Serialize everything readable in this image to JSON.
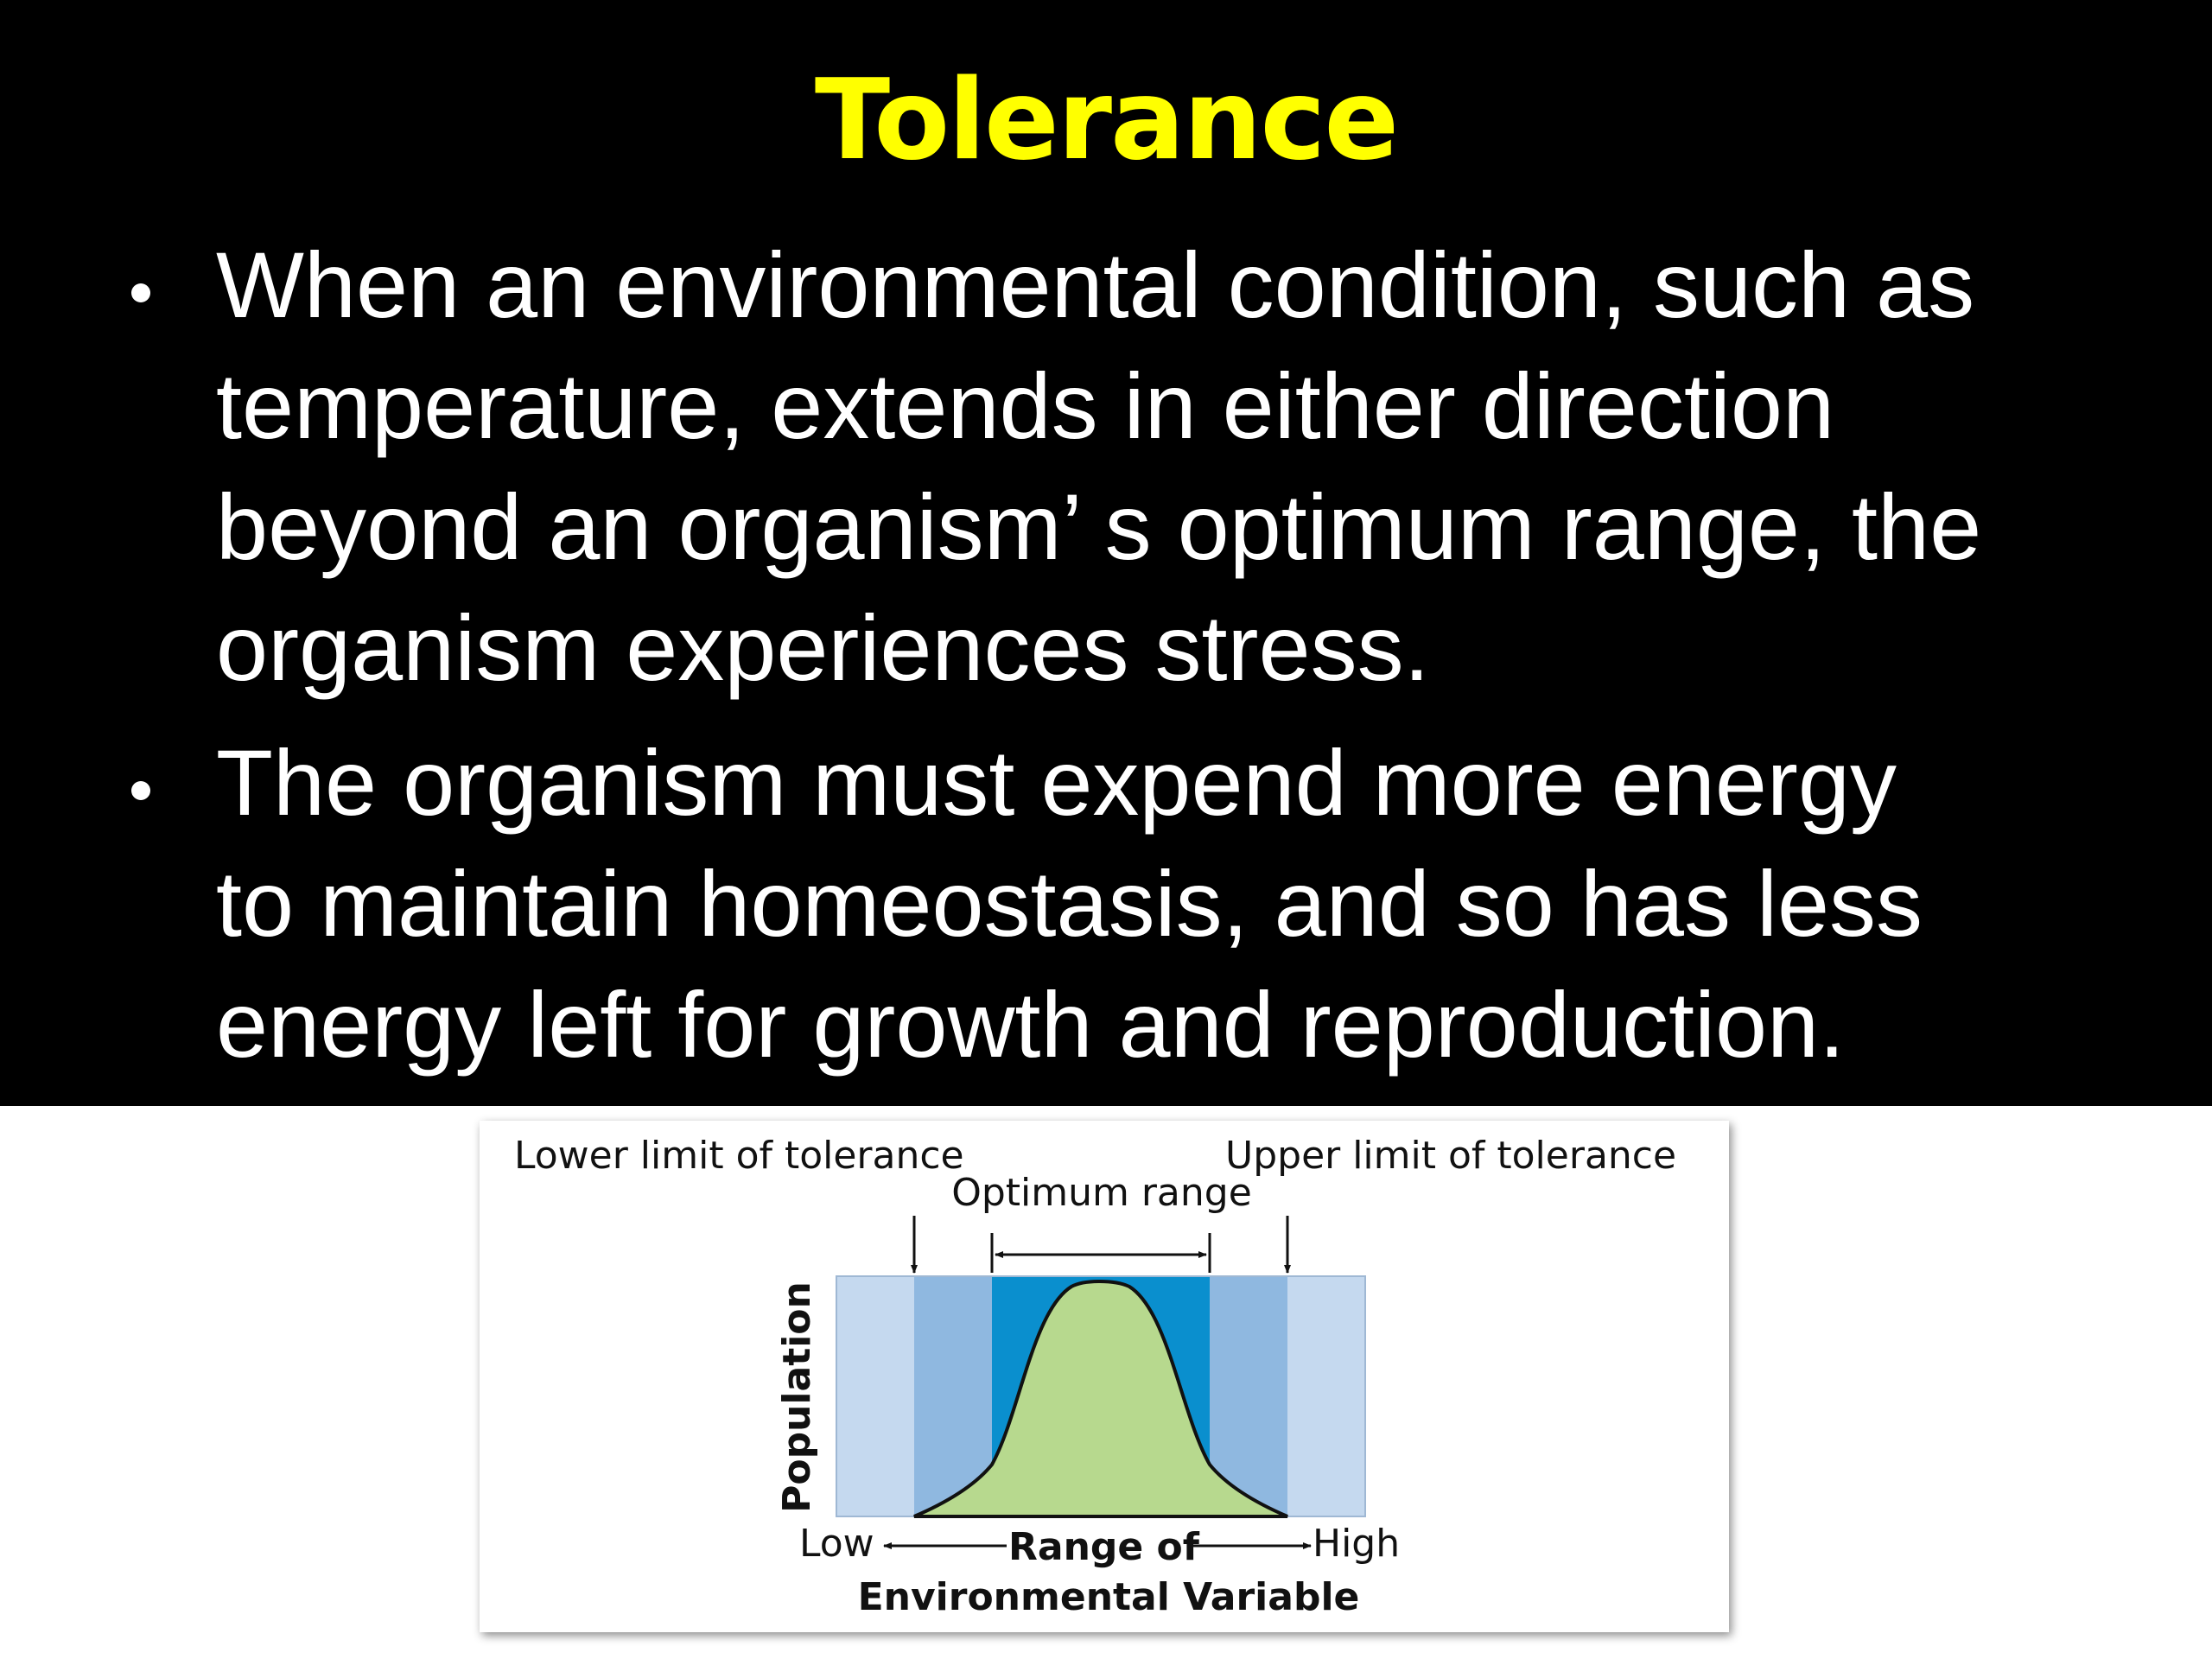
{
  "slide": {
    "title": "Tolerance",
    "title_color": "#ffff00",
    "bullets": [
      {
        "lines": [
          "When an environmental condition, such as",
          "temperature, extends in either direction",
          "beyond an organism’ s optimum range, the",
          "organism experiences stress."
        ]
      },
      {
        "lines": [
          "The organism must expend more energy",
          "to maintain homeostasis, and so has less",
          "energy left for growth and reproduction."
        ]
      }
    ]
  },
  "diagram": {
    "labels": {
      "lower_limit": "Lower limit of tolerance",
      "upper_limit": "Upper limit of tolerance",
      "optimum": "Optimum range",
      "y_axis": "Population",
      "x_low": "Low",
      "x_mid": "Range of",
      "x_high": "High",
      "x_variable": "Environmental Variable"
    },
    "colors": {
      "outer_zone": "#c5d9ef",
      "stress_zone": "#8fb8e0",
      "optimum_zone": "#0a8fce",
      "curve_fill": "#b7d98e"
    }
  }
}
